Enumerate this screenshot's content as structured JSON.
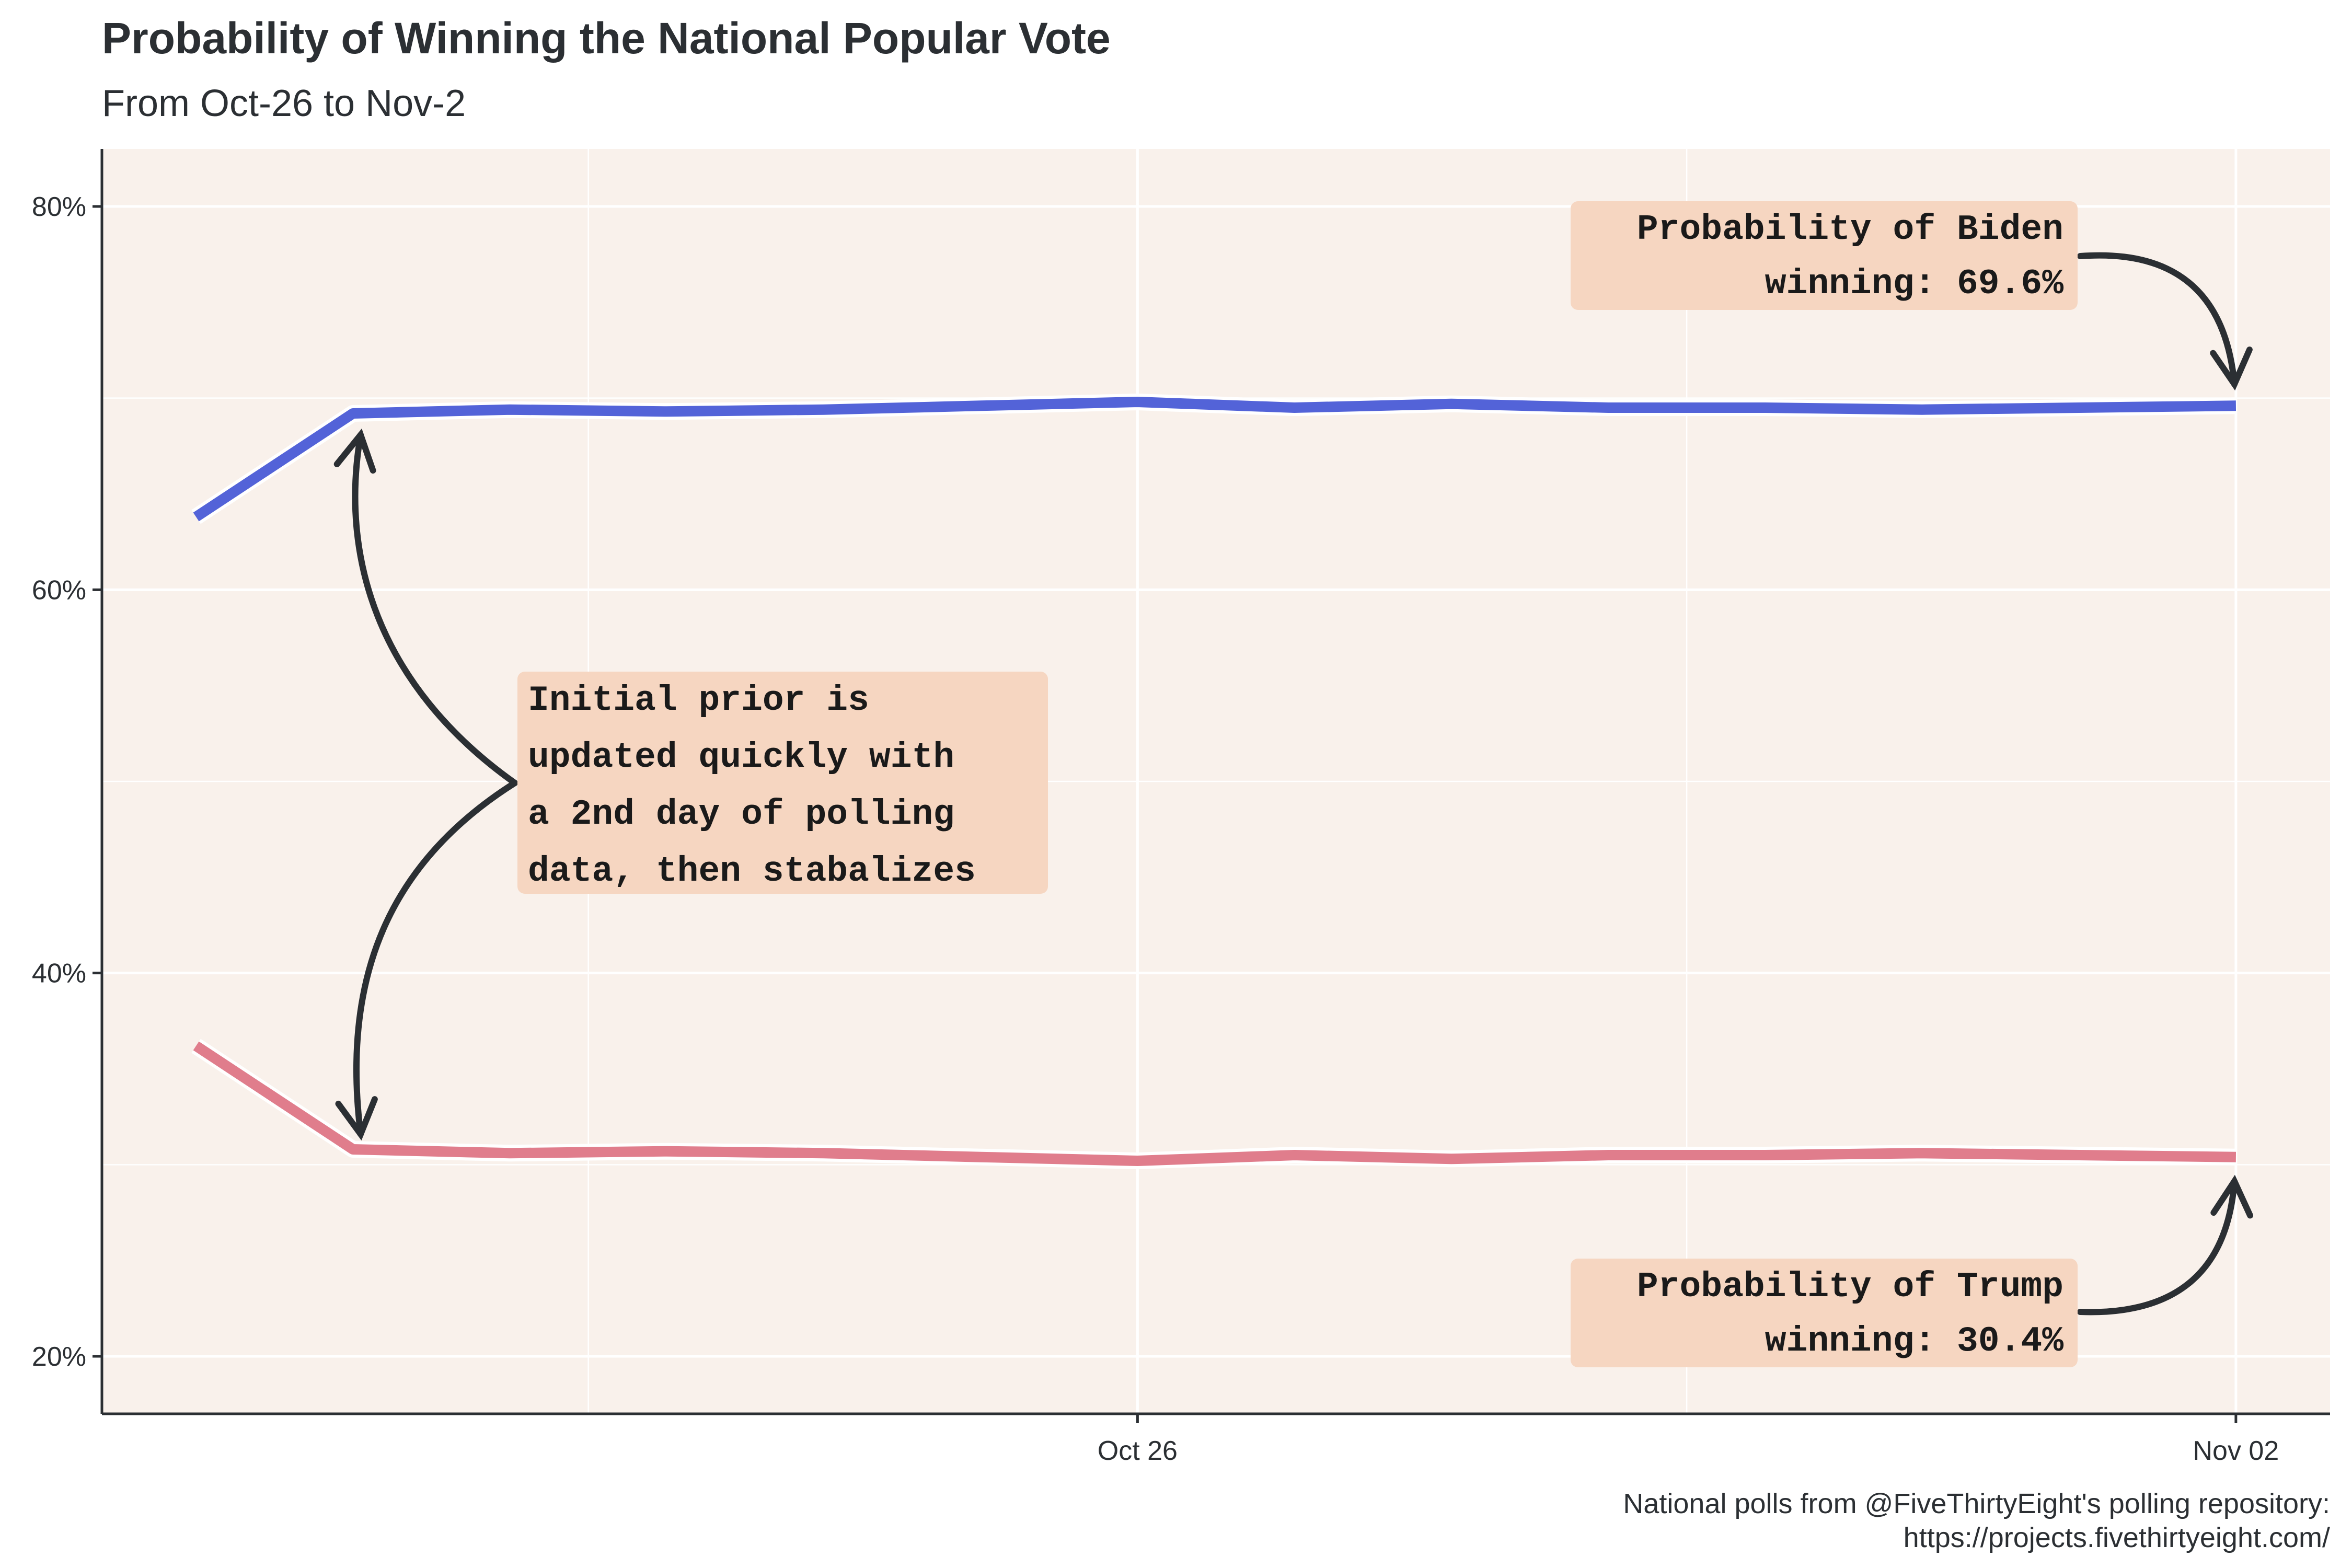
{
  "chart_data": {
    "type": "line",
    "title": "Probability of Winning the National Popular Vote",
    "subtitle": "From Oct-26 to Nov-2",
    "caption": [
      "National polls from @FiveThirtyEight's polling repository:",
      "https://projects.fivethirtyeight.com/"
    ],
    "xlabel": "",
    "ylabel": "",
    "x": [
      "2020-10-20",
      "2020-10-21",
      "2020-10-22",
      "2020-10-23",
      "2020-10-24",
      "2020-10-25",
      "2020-10-26",
      "2020-10-27",
      "2020-10-28",
      "2020-10-29",
      "2020-10-30",
      "2020-10-31",
      "2020-11-01",
      "2020-11-02"
    ],
    "x_ticks": [
      {
        "date": "2020-10-26",
        "label": "Oct 26"
      },
      {
        "date": "2020-11-02",
        "label": "Nov 02"
      }
    ],
    "xlim": [
      "2020-10-19.4",
      "2020-11-02.6"
    ],
    "ylim": [
      0.17,
      0.83
    ],
    "y_ticks": [
      {
        "value": 0.2,
        "label": "20%"
      },
      {
        "value": 0.4,
        "label": "40%"
      },
      {
        "value": 0.6,
        "label": "60%"
      },
      {
        "value": 0.8,
        "label": "80%"
      }
    ],
    "grid": true,
    "legend": "none",
    "series": [
      {
        "key": "biden",
        "color": "#5363d8",
        "values": [
          0.638,
          0.692,
          0.694,
          0.693,
          0.694,
          0.696,
          0.698,
          0.695,
          0.697,
          0.695,
          0.695,
          0.694,
          0.695,
          0.696
        ]
      },
      {
        "key": "trump",
        "color": "#e07d8c",
        "values": [
          0.362,
          0.308,
          0.306,
          0.307,
          0.306,
          0.304,
          0.302,
          0.305,
          0.303,
          0.305,
          0.305,
          0.306,
          0.305,
          0.304
        ]
      }
    ],
    "annotations": [
      {
        "key": "biden-label",
        "lines": [
          "Probability of Biden",
          "winning: 69.6%"
        ]
      },
      {
        "key": "trump-label",
        "lines": [
          "Probability of Trump",
          "winning: 30.4%"
        ]
      },
      {
        "key": "prior-note",
        "lines": [
          "Initial prior is",
          "updated quickly with",
          "a 2nd day of polling",
          "data, then stabalizes"
        ]
      }
    ],
    "colors": {
      "panel": "#f9f1eb",
      "label_fill": "#f6d6c1",
      "grid": "#ffffff",
      "axis": "#2b2f33",
      "arrow": "#2b2f33"
    }
  }
}
